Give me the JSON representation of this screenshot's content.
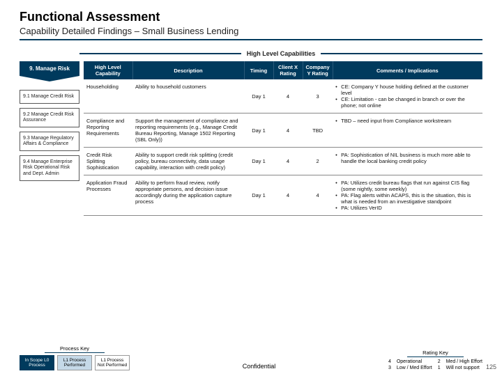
{
  "header": {
    "title": "Functional Assessment",
    "subtitle": "Capability Detailed Findings – Small Business Lending"
  },
  "section_label": "High Level Capabilities",
  "chevron": "9. Manage Risk",
  "side_items": [
    "9.1 Manage Credit Risk",
    "9.2 Manage Credit Risk Assurance",
    "9.3 Manage Regulatory Affairs & Compliance",
    "9.4 Manage Enterprise Risk Operational Risk and Dept. Admin"
  ],
  "cols": {
    "cap": "High Level Capability",
    "desc": "Description",
    "tim": "Timing",
    "cx": "Client X Rating",
    "cy": "Company Y Rating",
    "comm": "Comments / Implications"
  },
  "rows": [
    {
      "cap": "Householding",
      "desc": "Ability to household customers",
      "tim": "Day 1",
      "cx": "4",
      "cy": "3",
      "comm": [
        "CE: Company Y house holding defined at the customer level",
        "CE: Limitation - can be changed in branch or over the phone; not online"
      ]
    },
    {
      "cap": "Compliance and Reporting Requirements",
      "desc": "Support the management of compliance and reporting requirements (e.g., Manage Credit Bureau Reporting, Manage 1502 Reporting (SBL Only))",
      "tim": "Day 1",
      "cx": "4",
      "cy": "TBD",
      "comm": [
        "TBD – need input from Compliance workstream"
      ]
    },
    {
      "cap": "Credit Risk Splitting Sophistication",
      "desc": "Ability to support credit risk splitting (credit policy, bureau connectivity, data usage capability, interaction with credit policy)",
      "tim": "Day 1",
      "cx": "4",
      "cy": "2",
      "comm": [
        "PA: Sophistication of NIL business is much more able to handle the local banking credit policy"
      ]
    },
    {
      "cap": "Application Fraud Processes",
      "desc": "Ability to perform fraud review, notify appropriate persons, and decision issue accordingly during the application capture process",
      "tim": "Day 1",
      "cx": "4",
      "cy": "4",
      "comm": [
        "PA: Utilizes credit bureau flags that run against CIS flag (some nightly, some weekly)",
        "PA: Flag alerts within ACAPS, this is the situation, this is what is needed from an investigative standpoint",
        "PA: Utilizes VerID"
      ]
    }
  ],
  "process_key": {
    "title": "Process Key",
    "scope": "In Scope L0 Process",
    "perf": "L1 Process Performed",
    "notperf": "L1 Process Not Performed"
  },
  "rating_key": {
    "title": "Rating Key",
    "cells": [
      [
        "4",
        "Operational",
        "2",
        "Med / High Effort"
      ],
      [
        "3",
        "Low / Med Effort",
        "1",
        "Will not support"
      ]
    ]
  },
  "confidential": "Confidential",
  "page": "125"
}
